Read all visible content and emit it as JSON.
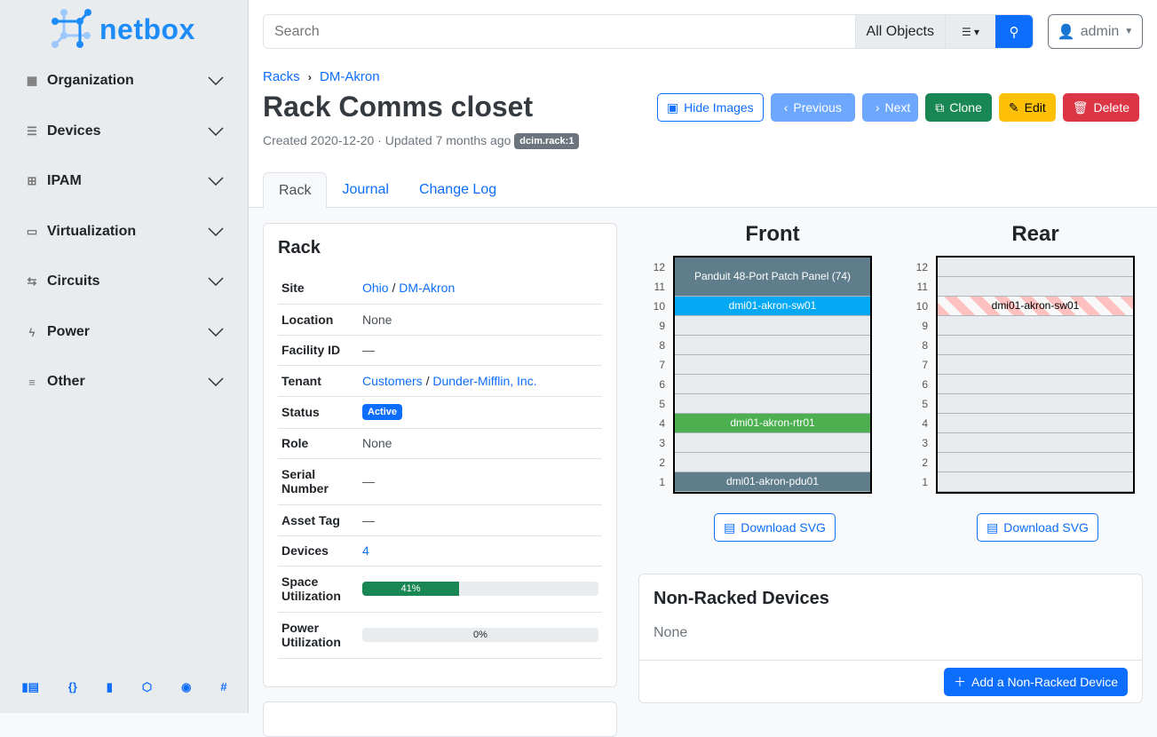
{
  "brand": {
    "name": "netbox",
    "color": "#1d8cf8"
  },
  "sidebar": {
    "items": [
      {
        "label": "Organization",
        "icon": "building-icon"
      },
      {
        "label": "Devices",
        "icon": "server-icon"
      },
      {
        "label": "IPAM",
        "icon": "ip-icon"
      },
      {
        "label": "Virtualization",
        "icon": "monitor-icon"
      },
      {
        "label": "Circuits",
        "icon": "circuit-icon"
      },
      {
        "label": "Power",
        "icon": "bolt-icon"
      },
      {
        "label": "Other",
        "icon": "list-icon"
      }
    ],
    "footer_icons": [
      "book-icon",
      "api-braces-icon",
      "docs-icon",
      "graphql-icon",
      "github-icon",
      "slack-icon"
    ]
  },
  "search": {
    "placeholder": "Search",
    "scope": "All Objects"
  },
  "user": {
    "name": "admin"
  },
  "breadcrumb": [
    "Racks",
    "DM-Akron"
  ],
  "page": {
    "title": "Rack Comms closet",
    "meta": "Created 2020-12-20 · Updated 7 months ago",
    "tag": "dcim.rack:1"
  },
  "actions": {
    "hide_images": "Hide Images",
    "previous": "Previous",
    "next": "Next",
    "clone": "Clone",
    "edit": "Edit",
    "delete": "Delete"
  },
  "tabs": [
    "Rack",
    "Journal",
    "Change Log"
  ],
  "rack_card": {
    "title": "Rack",
    "rows": {
      "site_label": "Site",
      "site_region": "Ohio",
      "site_name": "DM-Akron",
      "location_label": "Location",
      "location": "None",
      "facility_label": "Facility ID",
      "facility": "—",
      "tenant_label": "Tenant",
      "tenant_group": "Customers",
      "tenant": "Dunder-Mifflin, Inc.",
      "status_label": "Status",
      "status": "Active",
      "role_label": "Role",
      "role": "None",
      "serial_label": "Serial Number",
      "serial": "—",
      "asset_label": "Asset Tag",
      "asset": "—",
      "devices_label": "Devices",
      "devices": "4",
      "space_label": "Space Utilization",
      "space": "41%",
      "space_value": 41,
      "power_label": "Power Utilization",
      "power": "0%",
      "power_value": 0
    }
  },
  "elevations": {
    "front_title": "Front",
    "rear_title": "Rear",
    "download": "Download SVG",
    "front": [
      {
        "name": "Panduit 48-Port Patch Panel (74)",
        "top": 12,
        "height": 2,
        "color": "#607d8b"
      },
      {
        "name": "dmi01-akron-sw01",
        "top": 10,
        "height": 1,
        "color": "#03a9f4"
      },
      {
        "name": "dmi01-akron-rtr01",
        "top": 4,
        "height": 1,
        "color": "#4caf50"
      },
      {
        "name": "dmi01-akron-pdu01",
        "top": 1,
        "height": 1,
        "color": "#607d8b"
      }
    ],
    "rear": [
      {
        "name": "dmi01-akron-sw01",
        "top": 10,
        "height": 1,
        "striped": true
      }
    ]
  },
  "non_racked": {
    "title": "Non-Racked Devices",
    "value": "None",
    "add": "Add a Non-Racked Device"
  }
}
